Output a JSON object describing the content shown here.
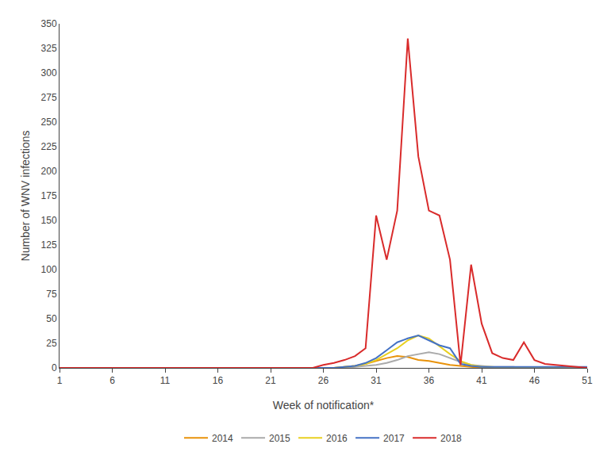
{
  "chart_data": {
    "type": "line",
    "xlabel": "Week of notification*",
    "ylabel": "Number of WNV infections",
    "x": [
      1,
      2,
      3,
      4,
      5,
      6,
      7,
      8,
      9,
      10,
      11,
      12,
      13,
      14,
      15,
      16,
      17,
      18,
      19,
      20,
      21,
      22,
      23,
      24,
      25,
      26,
      27,
      28,
      29,
      30,
      31,
      32,
      33,
      34,
      35,
      36,
      37,
      38,
      39,
      40,
      41,
      42,
      43,
      44,
      45,
      46,
      47,
      48,
      49,
      50,
      51
    ],
    "series": [
      {
        "name": "2014",
        "color": "#E8920A",
        "values": [
          0,
          0,
          0,
          0,
          0,
          0,
          0,
          0,
          0,
          0,
          0,
          0,
          0,
          0,
          0,
          0,
          0,
          0,
          0,
          0,
          0,
          0,
          0,
          0,
          0,
          0,
          0,
          1,
          2,
          4,
          7,
          10,
          12,
          11,
          8,
          7,
          5,
          3,
          2,
          1,
          0,
          0,
          0,
          0,
          0,
          0,
          0,
          0,
          0,
          0,
          0
        ]
      },
      {
        "name": "2015",
        "color": "#AAAAAA",
        "values": [
          0,
          0,
          0,
          0,
          0,
          0,
          0,
          0,
          0,
          0,
          0,
          0,
          0,
          0,
          0,
          0,
          0,
          0,
          0,
          0,
          0,
          0,
          0,
          0,
          0,
          0,
          0,
          0,
          1,
          2,
          3,
          5,
          8,
          12,
          14,
          16,
          14,
          10,
          6,
          3,
          2,
          1,
          1,
          1,
          0,
          0,
          0,
          0,
          0,
          0,
          0
        ]
      },
      {
        "name": "2016",
        "color": "#E8D020",
        "values": [
          0,
          0,
          0,
          0,
          0,
          0,
          0,
          0,
          0,
          0,
          0,
          0,
          0,
          0,
          0,
          0,
          0,
          0,
          0,
          0,
          0,
          0,
          0,
          0,
          0,
          0,
          0,
          1,
          2,
          4,
          8,
          14,
          20,
          28,
          33,
          30,
          22,
          14,
          7,
          3,
          1,
          1,
          0,
          0,
          0,
          0,
          0,
          0,
          0,
          0,
          0
        ]
      },
      {
        "name": "2017",
        "color": "#4472C4",
        "values": [
          0,
          0,
          0,
          0,
          0,
          0,
          0,
          0,
          0,
          0,
          0,
          0,
          0,
          0,
          0,
          0,
          0,
          0,
          0,
          0,
          0,
          0,
          0,
          0,
          0,
          0,
          0,
          1,
          2,
          5,
          10,
          18,
          26,
          30,
          33,
          28,
          23,
          20,
          4,
          2,
          1,
          1,
          1,
          1,
          1,
          1,
          1,
          1,
          1,
          1,
          1
        ]
      },
      {
        "name": "2018",
        "color": "#D92B2B",
        "values": [
          0,
          0,
          0,
          0,
          0,
          0,
          0,
          0,
          0,
          0,
          0,
          0,
          0,
          0,
          0,
          0,
          0,
          0,
          0,
          0,
          0,
          0,
          0,
          0,
          0,
          3,
          5,
          8,
          12,
          20,
          155,
          110,
          160,
          335,
          215,
          160,
          155,
          110,
          3,
          105,
          45,
          15,
          10,
          8,
          26,
          8,
          4,
          3,
          2,
          1,
          0
        ]
      }
    ],
    "xlim": [
      1,
      51
    ],
    "xticks": [
      1,
      6,
      11,
      16,
      21,
      26,
      31,
      36,
      41,
      46,
      51
    ],
    "ylim": [
      0,
      350
    ],
    "yticks": [
      0,
      25,
      50,
      75,
      100,
      125,
      150,
      175,
      200,
      225,
      250,
      275,
      300,
      325,
      350
    ],
    "grid": false,
    "legend": "bottom"
  }
}
